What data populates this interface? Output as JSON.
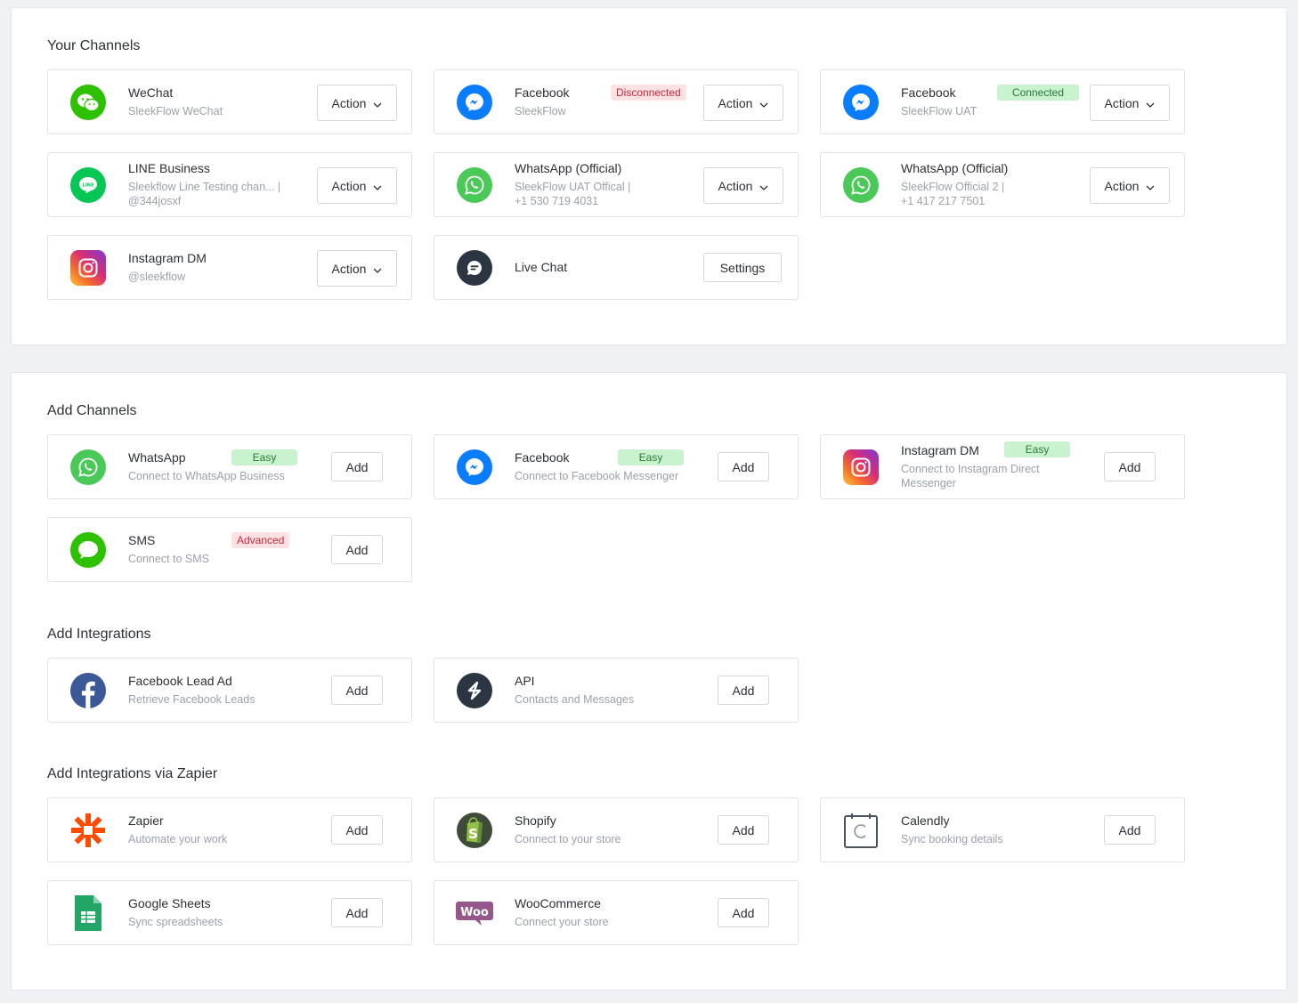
{
  "sections": {
    "your_channels": "Your Channels",
    "add_channels": "Add Channels",
    "add_integrations": "Add Integrations",
    "add_zapier": "Add Integrations via Zapier"
  },
  "labels": {
    "action": "Action",
    "add": "Add",
    "settings": "Settings"
  },
  "your_channels": [
    {
      "name": "WeChat",
      "sub": [
        "SleekFlow WeChat"
      ],
      "icon": "wechat-icon"
    },
    {
      "name": "Facebook",
      "sub": [
        "SleekFlow"
      ],
      "badge": "Disconnected",
      "icon": "messenger-icon"
    },
    {
      "name": "Facebook",
      "sub": [
        "SleekFlow UAT"
      ],
      "badge": "Connected",
      "icon": "messenger-icon"
    },
    {
      "name": "LINE Business",
      "sub": [
        "Sleekflow Line Testing chan...  |",
        "@344josxf"
      ],
      "icon": "line-icon"
    },
    {
      "name": "WhatsApp (Official)",
      "sub": [
        "SleekFlow UAT Offical  |",
        "+1 530 719 4031"
      ],
      "icon": "whatsapp-icon"
    },
    {
      "name": "WhatsApp (Official)",
      "sub": [
        "SleekFlow Official 2  |",
        "+1 417 217 7501"
      ],
      "icon": "whatsapp-icon"
    },
    {
      "name": "Instagram DM",
      "sub": [
        "@sleekflow"
      ],
      "icon": "instagram-icon"
    },
    {
      "name": "Live Chat",
      "icon": "livechat-icon"
    }
  ],
  "add_channels": [
    {
      "name": "WhatsApp",
      "sub": [
        "Connect to WhatsApp Business"
      ],
      "badge": "Easy",
      "icon": "whatsapp-icon"
    },
    {
      "name": "Facebook",
      "sub": [
        "Connect to Facebook Messenger"
      ],
      "badge": "Easy",
      "icon": "messenger-icon"
    },
    {
      "name": "Instagram DM",
      "sub": [
        "Connect to Instagram Direct",
        "Messenger"
      ],
      "badge": "Easy",
      "icon": "instagram-icon"
    },
    {
      "name": "SMS",
      "sub": [
        "Connect to SMS"
      ],
      "badge": "Advanced",
      "icon": "sms-icon"
    }
  ],
  "add_integrations": [
    {
      "name": "Facebook Lead Ad",
      "sub": [
        "Retrieve Facebook Leads"
      ],
      "icon": "facebook-icon"
    },
    {
      "name": "API",
      "sub": [
        "Contacts and Messages"
      ],
      "icon": "api-icon"
    }
  ],
  "add_zapier": [
    {
      "name": "Zapier",
      "sub": [
        "Automate your work"
      ],
      "icon": "zapier-icon"
    },
    {
      "name": "Shopify",
      "sub": [
        "Connect to your store"
      ],
      "icon": "shopify-icon"
    },
    {
      "name": "Calendly",
      "sub": [
        "Sync booking details"
      ],
      "icon": "calendly-icon"
    },
    {
      "name": "Google Sheets",
      "sub": [
        "Sync spreadsheets"
      ],
      "icon": "google-sheets-icon"
    },
    {
      "name": "WooCommerce",
      "sub": [
        "Connect your store"
      ],
      "icon": "woocommerce-icon"
    }
  ],
  "colors": {
    "page_bg": "#f0f1f4",
    "disconnected": "#c8283a",
    "connected": "#297a37",
    "wechat": "#2dc100",
    "whatsapp": "#4ac959",
    "messenger": "#0a7cff",
    "line": "#06c755",
    "zapier": "#ff4a00",
    "woocommerce": "#96588a"
  }
}
